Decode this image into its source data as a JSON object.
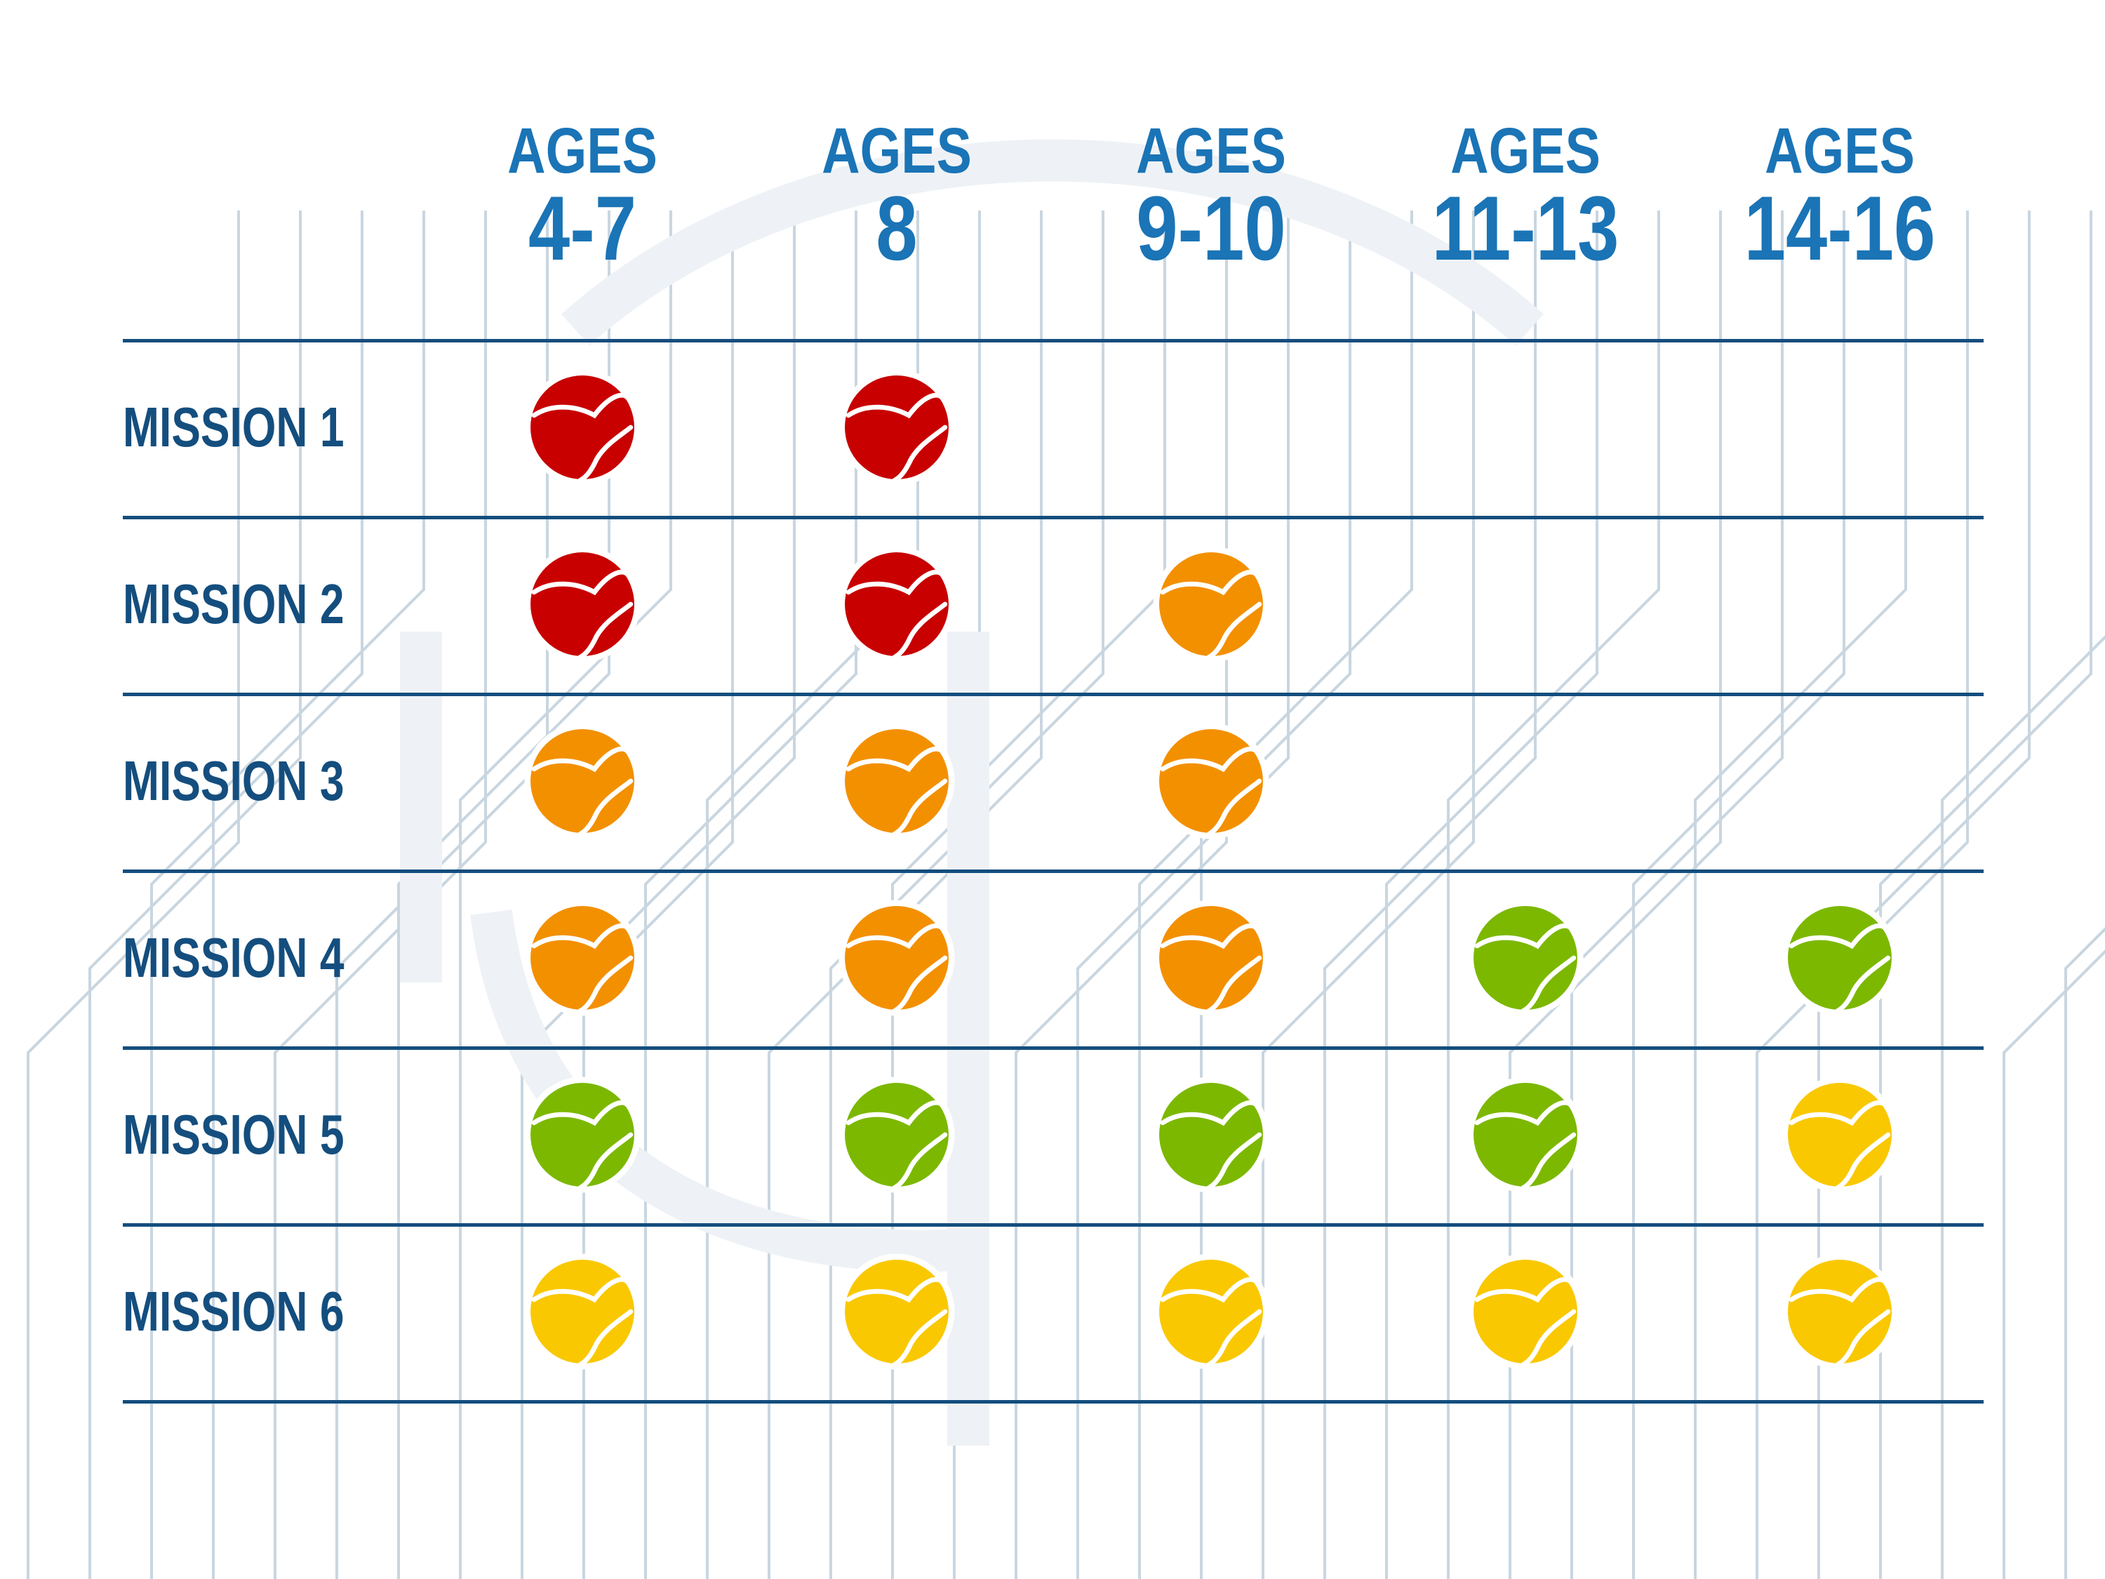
{
  "columns": [
    {
      "top": "AGES",
      "range": "4-7"
    },
    {
      "top": "AGES",
      "range": "8"
    },
    {
      "top": "AGES",
      "range": "9-10"
    },
    {
      "top": "AGES",
      "range": "11-13"
    },
    {
      "top": "AGES",
      "range": "14-16"
    }
  ],
  "rows": [
    {
      "label": "MISSION 1",
      "balls": [
        "red",
        "red",
        null,
        null,
        null
      ]
    },
    {
      "label": "MISSION 2",
      "balls": [
        "red",
        "red",
        "orange",
        null,
        null
      ]
    },
    {
      "label": "MISSION 3",
      "balls": [
        "orange",
        "orange",
        "orange",
        null,
        null
      ]
    },
    {
      "label": "MISSION 4",
      "balls": [
        "orange",
        "orange",
        "orange",
        "green",
        "green"
      ]
    },
    {
      "label": "MISSION 5",
      "balls": [
        "green",
        "green",
        "green",
        "green",
        "yellow"
      ]
    },
    {
      "label": "MISSION 6",
      "balls": [
        "yellow",
        "yellow",
        "yellow",
        "yellow",
        "yellow"
      ]
    }
  ],
  "ball_colors": {
    "red": "#c80000",
    "orange": "#f39000",
    "green": "#7cb800",
    "yellow": "#f9c800"
  },
  "colors": {
    "header_text": "#1a74b6",
    "row_text": "#144e7e",
    "rules": "#144e7e",
    "background_pattern": "#c9d6e0"
  }
}
